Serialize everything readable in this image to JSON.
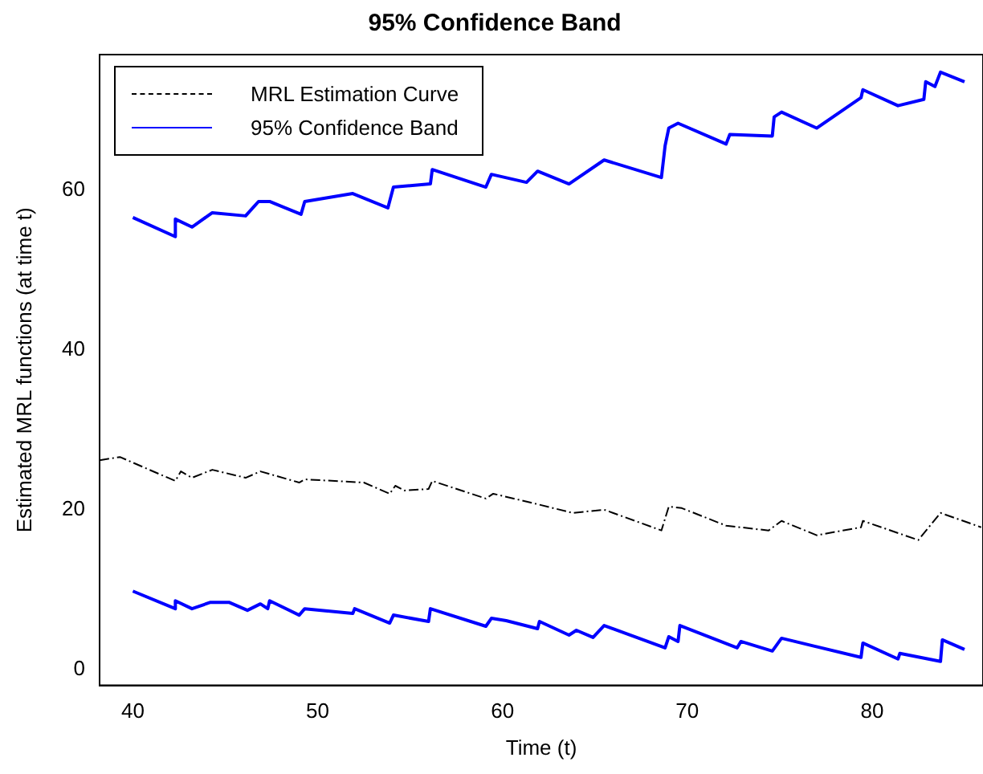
{
  "chart_data": {
    "type": "line",
    "title": "95% Confidence Band",
    "xlabel": "Time (t)",
    "ylabel": "Estimated MRL functions (at time t)",
    "xlim": [
      38.2,
      86
    ],
    "xticks": [
      40,
      50,
      60,
      70,
      80
    ],
    "ylim": [
      -2,
      77
    ],
    "yticks": [
      0,
      20,
      40,
      60
    ],
    "grid": false,
    "legend": "top left",
    "marker": "none",
    "series": [
      {
        "name": "MRL Estimation Curve",
        "color": "#000000",
        "line_style": "dashed",
        "x": [
          38.2,
          39.3,
          42.3,
          42.6,
          43.2,
          44.3,
          46.1,
          46.9,
          49,
          49.3,
          52.5,
          53.9,
          54.2,
          54.7,
          56,
          56.2,
          59.1,
          59.5,
          61.7,
          63.8,
          65.5,
          68.6,
          69,
          69.7,
          72.1,
          74.4,
          75.1,
          77,
          79.4,
          79.5,
          82.5,
          83.7,
          85.9
        ],
        "values": [
          26.2,
          26.6,
          23.6,
          24.8,
          24,
          25,
          24,
          24.8,
          23.4,
          23.8,
          23.4,
          22,
          23,
          22.4,
          22.6,
          23.6,
          21.4,
          22,
          20.8,
          19.6,
          20,
          17.4,
          20.4,
          20.2,
          18,
          17.4,
          18.6,
          16.8,
          17.8,
          18.6,
          16.2,
          19.6,
          17.8
        ]
      },
      {
        "name": "95% Confidence Band",
        "color": "#0000ff",
        "line_style": "solid",
        "x": [
          40,
          42.3,
          42.3,
          43.2,
          44.3,
          46.1,
          46.8,
          47.4,
          49.1,
          49.3,
          51.9,
          53.8,
          54.1,
          56.1,
          56.2,
          59.1,
          59.4,
          61.3,
          61.9,
          63.6,
          65.5,
          68.6,
          68.8,
          69,
          69.5,
          72.1,
          72.3,
          74.6,
          74.7,
          75.1,
          77,
          79.4,
          79.5,
          81.4,
          82.8,
          82.9,
          83.4,
          83.7,
          85
        ],
        "values": [
          56.6,
          54.2,
          56.4,
          55.4,
          57.2,
          56.8,
          58.6,
          58.6,
          57,
          58.6,
          59.6,
          57.8,
          60.4,
          60.8,
          62.6,
          60.4,
          62,
          61,
          62.4,
          60.8,
          63.8,
          61.6,
          65.6,
          67.8,
          68.4,
          65.8,
          67,
          66.8,
          69.2,
          69.8,
          67.8,
          71.6,
          72.6,
          70.6,
          71.4,
          73.6,
          73,
          74.8,
          73.6
        ]
      },
      {
        "color": "#0000ff",
        "line_style": "solid",
        "x": [
          40,
          42.3,
          42.3,
          43.2,
          44.2,
          45.2,
          46.2,
          46.9,
          47.3,
          47.4,
          49,
          49.3,
          51.9,
          52,
          53.9,
          54.1,
          56,
          56.1,
          59.1,
          59.4,
          60.2,
          61.9,
          62,
          63.6,
          64,
          64.9,
          65.5,
          68.8,
          69,
          69.5,
          69.6,
          72.7,
          72.9,
          74.6,
          75.1,
          79.4,
          79.5,
          81.4,
          81.5,
          83.7,
          83.8,
          85
        ],
        "values": [
          9.8,
          7.6,
          8.6,
          7.6,
          8.4,
          8.4,
          7.4,
          8.2,
          7.6,
          8.6,
          6.8,
          7.6,
          7,
          7.6,
          5.8,
          6.8,
          6,
          7.6,
          5.4,
          6.4,
          6.1,
          5.1,
          6,
          4.3,
          4.9,
          4,
          5.5,
          2.7,
          4.1,
          3.5,
          5.5,
          2.7,
          3.5,
          2.3,
          3.9,
          1.5,
          3.3,
          1.3,
          2,
          1,
          3.7,
          2.5
        ]
      }
    ]
  }
}
